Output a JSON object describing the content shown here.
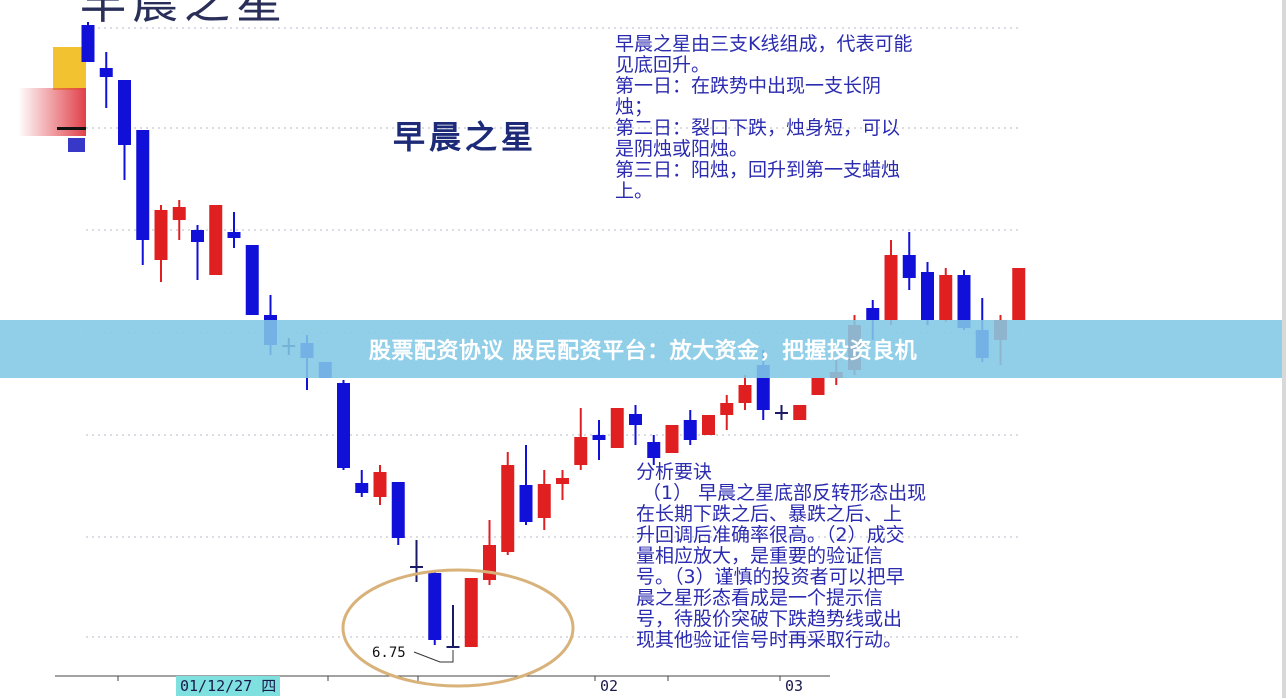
{
  "banner": {
    "text": "股票配资协议 股民配资平台：放大资金，把握投资良机",
    "color": "#82c8e6"
  },
  "chart_data": {
    "type": "candlestick",
    "title": "早晨之星",
    "subtitle": "早晨之星",
    "up_color": "#e02020",
    "down_color": "#1010d8",
    "grid": "dotted horizontal",
    "x_tick_labels": [
      {
        "label": "01/12/27 四",
        "highlighted": true
      },
      {
        "label": "02",
        "highlighted": false
      },
      {
        "label": "03",
        "highlighted": false
      }
    ],
    "annotation": {
      "label": "6.75",
      "target": "lowest low, morning star candle"
    },
    "highlight": "ellipse around morning star pattern",
    "candles": [
      {
        "o": 12.98,
        "h": 13.01,
        "l": 12.61,
        "c": 12.61
      },
      {
        "o": 12.55,
        "h": 12.71,
        "l": 12.15,
        "c": 12.46
      },
      {
        "o": 12.43,
        "h": 12.43,
        "l": 11.43,
        "c": 11.78
      },
      {
        "o": 11.93,
        "h": 11.93,
        "l": 10.58,
        "c": 10.83
      },
      {
        "o": 10.63,
        "h": 11.18,
        "l": 10.41,
        "c": 11.13
      },
      {
        "o": 11.03,
        "h": 11.23,
        "l": 10.83,
        "c": 11.16
      },
      {
        "o": 10.93,
        "h": 10.98,
        "l": 10.43,
        "c": 10.81
      },
      {
        "o": 10.48,
        "h": 11.18,
        "l": 10.48,
        "c": 11.18
      },
      {
        "o": 10.91,
        "h": 11.11,
        "l": 10.75,
        "c": 10.85
      },
      {
        "o": 10.78,
        "h": 10.78,
        "l": 10.08,
        "c": 10.08
      },
      {
        "o": 10.08,
        "h": 10.28,
        "l": 9.68,
        "c": 9.78
      },
      {
        "o": 9.78,
        "h": 9.85,
        "l": 9.68,
        "c": 9.78
      },
      {
        "o": 9.8,
        "h": 9.88,
        "l": 9.33,
        "c": 9.65
      },
      {
        "o": 9.61,
        "h": 9.61,
        "l": 9.45,
        "c": 9.45
      },
      {
        "o": 9.4,
        "h": 9.43,
        "l": 8.53,
        "c": 8.55
      },
      {
        "o": 8.4,
        "h": 8.53,
        "l": 8.26,
        "c": 8.3
      },
      {
        "o": 8.26,
        "h": 8.58,
        "l": 8.18,
        "c": 8.51
      },
      {
        "o": 8.41,
        "h": 8.41,
        "l": 7.78,
        "c": 7.85
      },
      {
        "o": 7.57,
        "h": 7.83,
        "l": 7.41,
        "c": 7.56
      },
      {
        "o": 7.5,
        "h": 7.53,
        "l": 6.78,
        "c": 6.83
      },
      {
        "o": 6.77,
        "h": 7.18,
        "l": 6.75,
        "c": 6.77
      },
      {
        "o": 6.76,
        "h": 7.45,
        "l": 6.76,
        "c": 7.45
      },
      {
        "o": 7.43,
        "h": 8.03,
        "l": 7.38,
        "c": 7.78
      },
      {
        "o": 7.71,
        "h": 8.71,
        "l": 7.68,
        "c": 8.58
      },
      {
        "o": 8.38,
        "h": 8.78,
        "l": 7.98,
        "c": 8.01
      },
      {
        "o": 8.05,
        "h": 8.53,
        "l": 7.93,
        "c": 8.39
      },
      {
        "o": 8.39,
        "h": 8.53,
        "l": 8.23,
        "c": 8.45
      },
      {
        "o": 8.58,
        "h": 9.15,
        "l": 8.53,
        "c": 8.86
      },
      {
        "o": 8.88,
        "h": 9.03,
        "l": 8.63,
        "c": 8.83
      },
      {
        "o": 8.75,
        "h": 9.15,
        "l": 8.75,
        "c": 9.15
      },
      {
        "o": 9.09,
        "h": 9.18,
        "l": 8.78,
        "c": 8.98
      },
      {
        "o": 8.81,
        "h": 8.88,
        "l": 8.58,
        "c": 8.65
      },
      {
        "o": 8.7,
        "h": 8.98,
        "l": 8.7,
        "c": 8.98
      },
      {
        "o": 9.03,
        "h": 9.13,
        "l": 8.78,
        "c": 8.83
      },
      {
        "o": 8.88,
        "h": 9.08,
        "l": 8.88,
        "c": 9.08
      },
      {
        "o": 9.08,
        "h": 9.28,
        "l": 8.93,
        "c": 9.2
      },
      {
        "o": 9.2,
        "h": 9.48,
        "l": 9.13,
        "c": 9.38
      },
      {
        "o": 9.58,
        "h": 9.73,
        "l": 9.03,
        "c": 9.13
      },
      {
        "o": 9.11,
        "h": 9.18,
        "l": 9.03,
        "c": 9.1
      },
      {
        "o": 9.03,
        "h": 9.18,
        "l": 9.03,
        "c": 9.18
      },
      {
        "o": 9.28,
        "h": 9.45,
        "l": 9.28,
        "c": 9.45
      },
      {
        "o": 9.45,
        "h": 9.63,
        "l": 9.38,
        "c": 9.51
      },
      {
        "o": 9.53,
        "h": 10.08,
        "l": 9.48,
        "c": 9.98
      },
      {
        "o": 10.15,
        "h": 10.23,
        "l": 9.83,
        "c": 10.03
      },
      {
        "o": 10.03,
        "h": 10.83,
        "l": 9.98,
        "c": 10.68
      },
      {
        "o": 10.68,
        "h": 10.91,
        "l": 10.33,
        "c": 10.45
      },
      {
        "o": 10.51,
        "h": 10.61,
        "l": 9.98,
        "c": 10.03
      },
      {
        "o": 10.03,
        "h": 10.55,
        "l": 10.01,
        "c": 10.48
      },
      {
        "o": 10.48,
        "h": 10.53,
        "l": 9.93,
        "c": 9.95
      },
      {
        "o": 9.93,
        "h": 10.25,
        "l": 9.61,
        "c": 9.65
      },
      {
        "o": 9.83,
        "h": 10.08,
        "l": 9.58,
        "c": 10.03
      },
      {
        "o": 10.03,
        "h": 10.55,
        "l": 10.03,
        "c": 10.55
      }
    ]
  },
  "notes": {
    "definition": "早晨之星由三支K线组成，代表可能\n见底回升。\n第一日：在跌势中出现一支长阴\n烛；\n第二日：裂口下跌，烛身短，可以\n是阴烛或阳烛。\n第三日：阳烛，回升到第一支蜡烛\n上。",
    "analysis": "分析要诀\n （1） 早晨之星底部反转形态出现\n在长期下跌之后、暴跌之后、上\n升回调后准确率很高。（2）成交\n量相应放大，是重要的验证信\n号。（3）谨慎的投资者可以把早\n晨之星形态看成是一个提示信\n号，待股价突破下跌趋势线或出\n现其他验证信号时再采取行动。"
  }
}
